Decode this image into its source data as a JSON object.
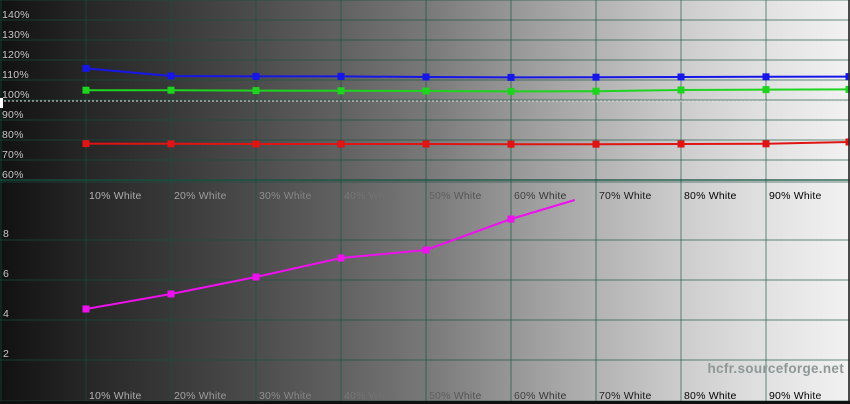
{
  "watermark": "hcfr.sourceforge.net",
  "colors": {
    "red": "#e01414",
    "green": "#1ed41e",
    "blue": "#1616e6",
    "magenta": "#ee10ee",
    "grid": "#16523f",
    "reference_dash": "#e8e8e8"
  },
  "chart_data": [
    {
      "type": "line",
      "name": "rgb-levels",
      "x_tick_labels": [
        "10% White",
        "20% White",
        "30% White",
        "40% White",
        "50% White",
        "60% White",
        "70% White",
        "80% White",
        "90% White"
      ],
      "x_values_percent": [
        10,
        20,
        30,
        40,
        50,
        60,
        70,
        80,
        90,
        100
      ],
      "y_tick_labels": [
        "140%",
        "130%",
        "120%",
        "110%",
        "100%",
        "90%",
        "80%",
        "70%",
        "60%"
      ],
      "y_tick_values": [
        140,
        130,
        120,
        110,
        100,
        90,
        80,
        70,
        60
      ],
      "ylim": [
        60,
        150
      ],
      "reference_line_percent": 100,
      "grid": true,
      "legend_position": "none",
      "series": [
        {
          "name": "red-level",
          "color_key": "red",
          "values": [
            78.2,
            78.1,
            78.0,
            78.0,
            78.0,
            77.9,
            77.9,
            78.0,
            78.1,
            79.0
          ]
        },
        {
          "name": "green-level",
          "color_key": "green",
          "values": [
            104.9,
            104.9,
            104.7,
            104.6,
            104.5,
            104.3,
            104.4,
            105.0,
            105.2,
            105.3
          ]
        },
        {
          "name": "blue-level",
          "color_key": "blue",
          "values": [
            115.8,
            112.0,
            111.8,
            111.8,
            111.5,
            111.3,
            111.4,
            111.5,
            111.6,
            111.7
          ]
        }
      ]
    },
    {
      "type": "line",
      "name": "luminance-curve",
      "x_tick_labels": [
        "10% White",
        "20% White",
        "30% White",
        "40% White",
        "50% White",
        "60% White",
        "70% White",
        "80% White",
        "90% White"
      ],
      "y_tick_labels": [
        "8",
        "6",
        "4",
        "2"
      ],
      "y_tick_values": [
        8,
        6,
        4,
        2
      ],
      "ylim": [
        0,
        11
      ],
      "grid": true,
      "legend_position": "none",
      "series": [
        {
          "name": "luminance",
          "color_key": "magenta",
          "x_values_percent": [
            10,
            20,
            30,
            40,
            50,
            60
          ],
          "values": [
            4.55,
            5.3,
            6.15,
            7.1,
            7.5,
            9.05
          ],
          "partial_segment_end": {
            "x_percent": 67.5,
            "value": 10.0
          }
        }
      ]
    }
  ]
}
